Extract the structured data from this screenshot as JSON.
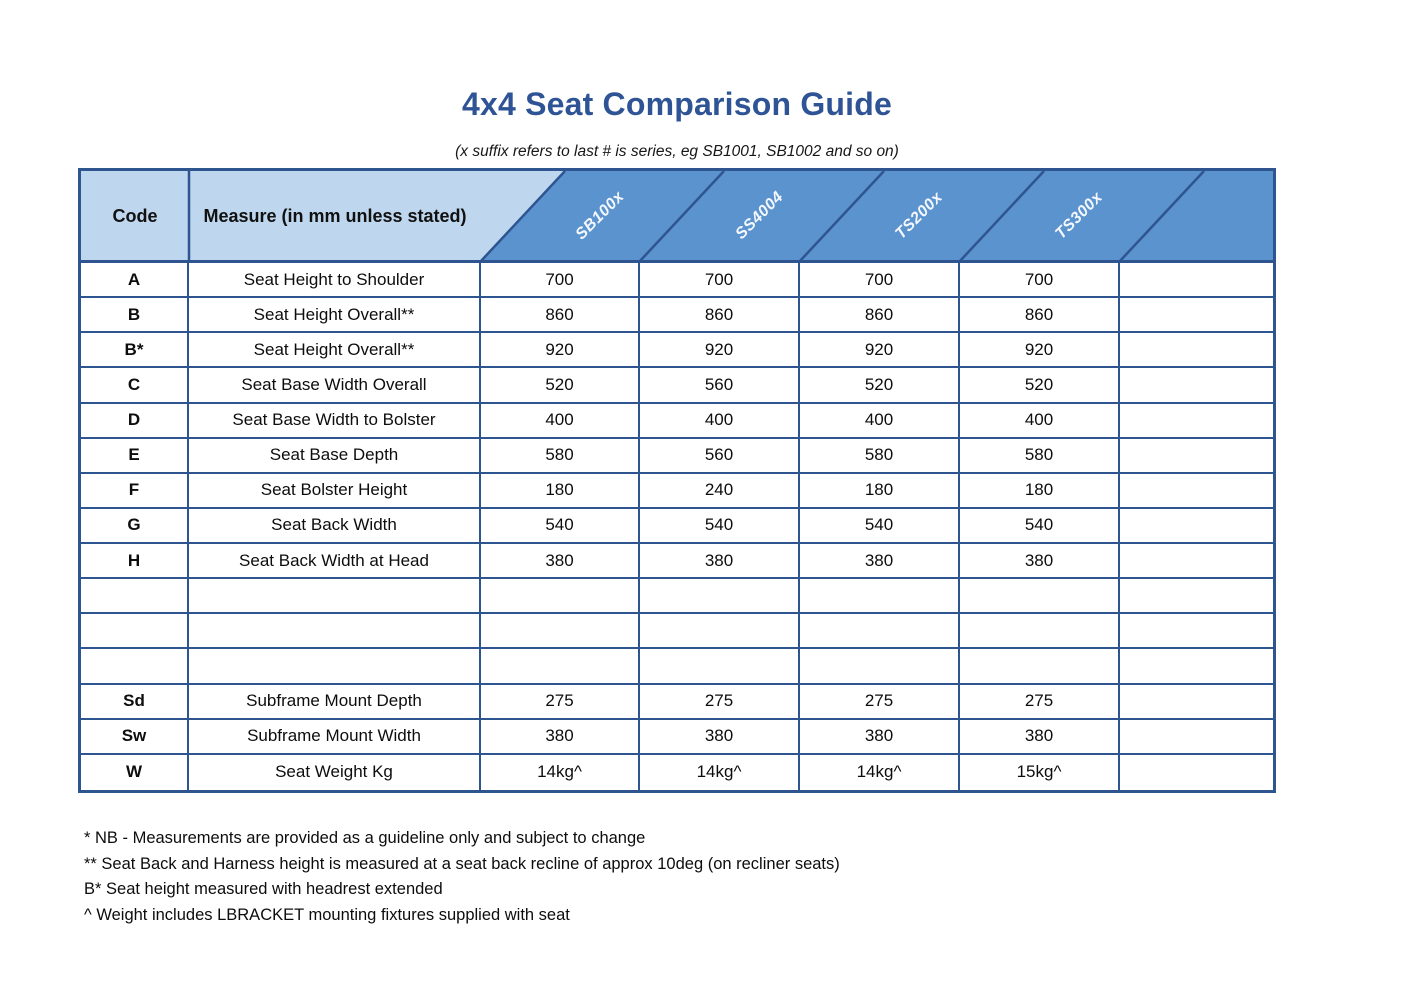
{
  "title": "4x4 Seat Comparison Guide",
  "subtitle": "(x suffix refers to last # is series, eg SB1001, SB1002 and so on)",
  "colors": {
    "title": "#2f5496",
    "border": "#2f5591",
    "light_header": "#bed7ee",
    "mid_header": "#5b93ce"
  },
  "table": {
    "code_header": "Code",
    "measure_header": "Measure (in mm unless stated)",
    "series_headers": [
      "SB100x",
      "SS4004",
      "TS200x",
      "TS300x"
    ],
    "rows": [
      {
        "code": "A",
        "measure": "Seat Height to Shoulder",
        "values": [
          "700",
          "700",
          "700",
          "700",
          ""
        ]
      },
      {
        "code": "B",
        "measure": "Seat Height Overall**",
        "values": [
          "860",
          "860",
          "860",
          "860",
          ""
        ]
      },
      {
        "code": "B*",
        "measure": "Seat Height Overall**",
        "values": [
          "920",
          "920",
          "920",
          "920",
          ""
        ]
      },
      {
        "code": "C",
        "measure": "Seat Base Width Overall",
        "values": [
          "520",
          "560",
          "520",
          "520",
          ""
        ]
      },
      {
        "code": "D",
        "measure": "Seat Base Width to Bolster",
        "values": [
          "400",
          "400",
          "400",
          "400",
          ""
        ]
      },
      {
        "code": "E",
        "measure": "Seat Base Depth",
        "values": [
          "580",
          "560",
          "580",
          "580",
          ""
        ]
      },
      {
        "code": "F",
        "measure": "Seat Bolster Height",
        "values": [
          "180",
          "240",
          "180",
          "180",
          ""
        ]
      },
      {
        "code": "G",
        "measure": "Seat Back Width",
        "values": [
          "540",
          "540",
          "540",
          "540",
          ""
        ]
      },
      {
        "code": "H",
        "measure": "Seat Back Width at Head",
        "values": [
          "380",
          "380",
          "380",
          "380",
          ""
        ]
      },
      {
        "code": "",
        "measure": "",
        "values": [
          "",
          "",
          "",
          "",
          ""
        ]
      },
      {
        "code": "",
        "measure": "",
        "values": [
          "",
          "",
          "",
          "",
          ""
        ]
      },
      {
        "code": "",
        "measure": "",
        "values": [
          "",
          "",
          "",
          "",
          ""
        ]
      },
      {
        "code": "Sd",
        "measure": "Subframe Mount Depth",
        "values": [
          "275",
          "275",
          "275",
          "275",
          ""
        ]
      },
      {
        "code": "Sw",
        "measure": "Subframe Mount Width",
        "values": [
          "380",
          "380",
          "380",
          "380",
          ""
        ]
      },
      {
        "code": "W",
        "measure": "Seat Weight Kg",
        "values": [
          "14kg^",
          "14kg^",
          "14kg^",
          "15kg^",
          ""
        ]
      }
    ]
  },
  "footnotes": [
    "* NB - Measurements are provided as a guideline only and subject to change",
    "** Seat Back and Harness height is measured at a seat back recline of approx 10deg (on recliner seats)",
    "B* Seat height measured with headrest extended",
    "^ Weight includes LBRACKET mounting fixtures supplied with seat"
  ]
}
